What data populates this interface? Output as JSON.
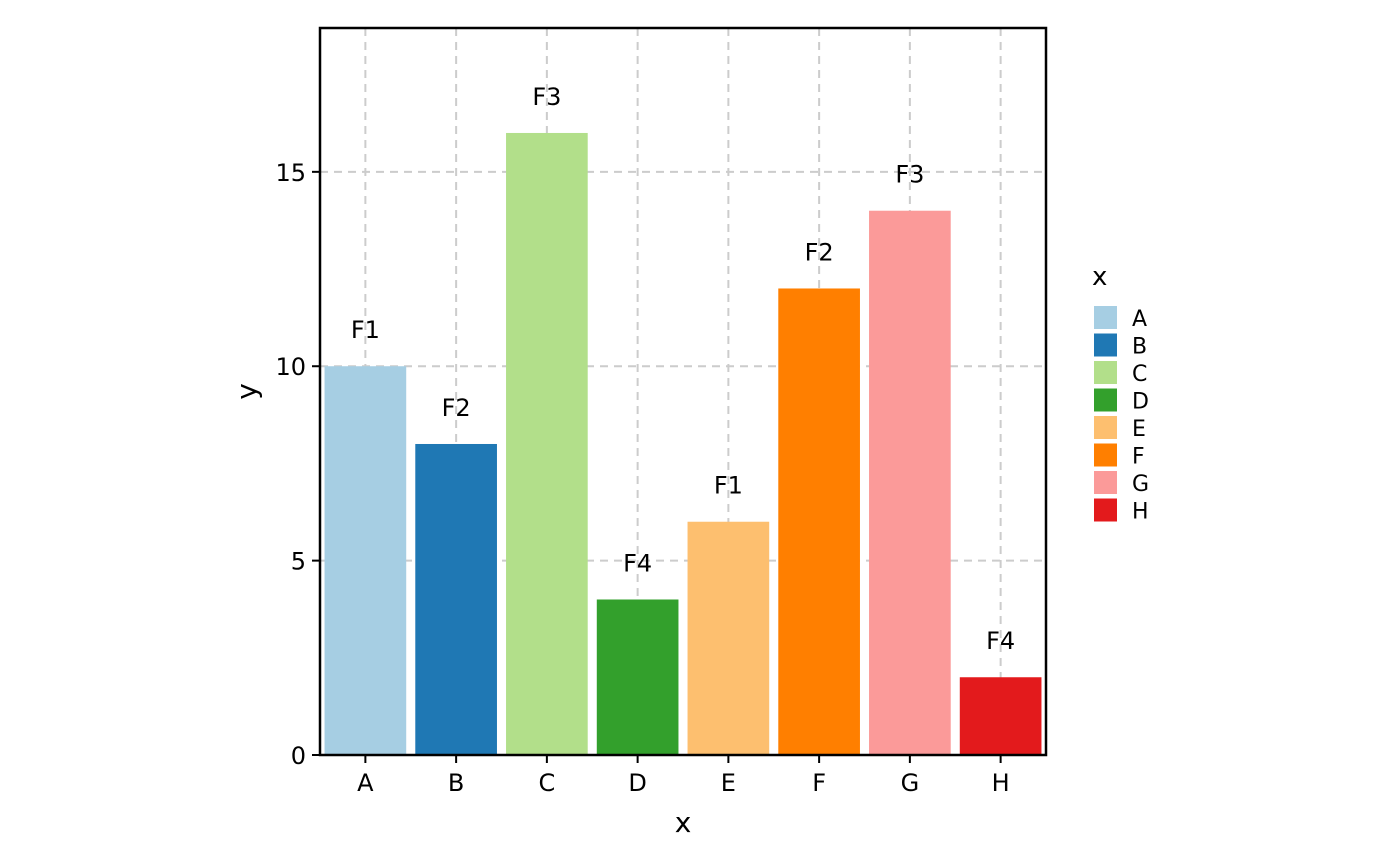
{
  "chart_data": {
    "type": "bar",
    "categories": [
      "A",
      "B",
      "C",
      "D",
      "E",
      "F",
      "G",
      "H"
    ],
    "values": [
      10,
      8,
      16,
      4,
      6,
      12,
      14,
      2
    ],
    "bar_labels": [
      "F1",
      "F2",
      "F3",
      "F4",
      "F1",
      "F2",
      "F3",
      "F4"
    ],
    "colors": [
      "#a6cee3",
      "#1f78b4",
      "#b2df8a",
      "#33a02c",
      "#fdbf6f",
      "#ff7f00",
      "#fb9a99",
      "#e31a1c"
    ],
    "xlabel": "x",
    "ylabel": "y",
    "yticks": [
      0,
      5,
      10,
      15
    ],
    "ylim": [
      0,
      18.7
    ],
    "grid": true,
    "legend": {
      "title": "x",
      "placement": "right",
      "entries": [
        "A",
        "B",
        "C",
        "D",
        "E",
        "F",
        "G",
        "H"
      ]
    }
  }
}
